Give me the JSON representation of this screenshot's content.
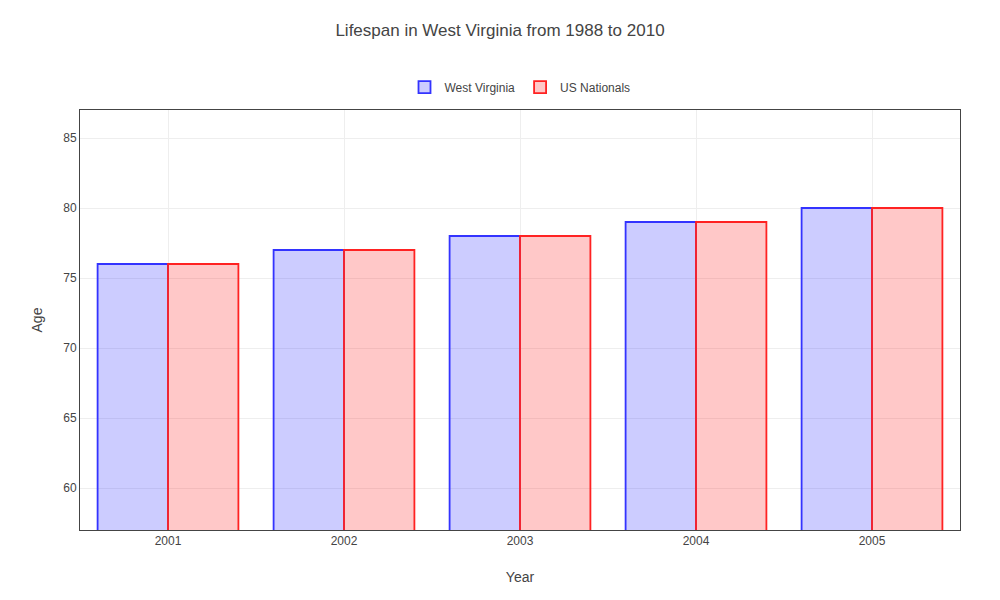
{
  "chart_data": {
    "type": "bar",
    "title": "Lifespan in West Virginia from 1988 to 2010",
    "xlabel": "Year",
    "ylabel": "Age",
    "categories": [
      "2001",
      "2002",
      "2003",
      "2004",
      "2005"
    ],
    "series": [
      {
        "name": "West Virginia",
        "color": "#3333ff",
        "values": [
          76,
          77,
          78,
          79,
          80
        ]
      },
      {
        "name": "US Nationals",
        "color": "#ff2222",
        "values": [
          76,
          77,
          78,
          79,
          80
        ]
      }
    ],
    "ylim": [
      57,
      87
    ],
    "yticks": [
      60,
      65,
      70,
      75,
      80,
      85
    ],
    "grid": true,
    "legend": "top"
  }
}
